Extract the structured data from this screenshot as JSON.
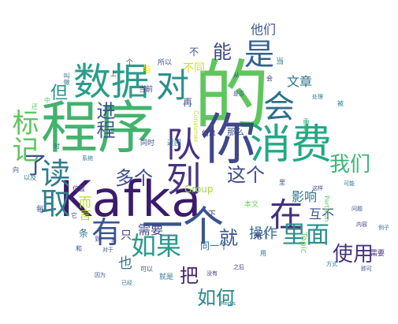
{
  "words": [
    {
      "text": "的",
      "color": "#5fc65e"
    },
    {
      "text": "Kafka",
      "color": "#3b1b6b"
    },
    {
      "text": "程序",
      "color": "#41b36c"
    },
    {
      "text": "你",
      "color": "#3f4889"
    },
    {
      "text": "消费",
      "color": "#22a784"
    },
    {
      "text": "数据",
      "color": "#2a9d8a"
    },
    {
      "text": "队列",
      "color": "#46327f"
    },
    {
      "text": "读取",
      "color": "#2f7d8e"
    },
    {
      "text": "一个",
      "color": "#3a5490"
    },
    {
      "text": "对",
      "color": "#2a8f8b"
    },
    {
      "text": "标记",
      "color": "#5fc65e"
    },
    {
      "text": "在",
      "color": "#43307d"
    },
    {
      "text": "是",
      "color": "#32628c"
    },
    {
      "text": "会",
      "color": "#2e6f8e"
    },
    {
      "text": "有",
      "color": "#3a548f"
    },
    {
      "text": "如果",
      "color": "#27998b"
    },
    {
      "text": "里面",
      "color": "#2c8e8b"
    },
    {
      "text": "我们",
      "color": "#3cb675"
    },
    {
      "text": "使用",
      "color": "#46337e"
    },
    {
      "text": "了",
      "color": "#3b4f8b"
    },
    {
      "text": "进程",
      "color": "#3b528b"
    },
    {
      "text": "这个",
      "color": "#3d4c89"
    },
    {
      "text": "多个",
      "color": "#3e4c8a"
    },
    {
      "text": "如何",
      "color": "#27888e"
    },
    {
      "text": "就",
      "color": "#3a558c"
    },
    {
      "text": "能",
      "color": "#3e4989"
    },
    {
      "text": "把",
      "color": "#45246e"
    },
    {
      "text": "但",
      "color": "#1f948c"
    },
    {
      "text": "而言",
      "color": "#b8de29"
    },
    {
      "text": "需要",
      "color": "#3f4788"
    },
    {
      "text": "操作",
      "color": "#31688e"
    },
    {
      "text": "也",
      "color": "#2a788e"
    },
    {
      "text": "只",
      "color": "#443a83"
    },
    {
      "text": "影响",
      "color": "#2b758e"
    },
    {
      "text": "互不",
      "color": "#3b528b"
    },
    {
      "text": "他们",
      "color": "#3a548c"
    },
    {
      "text": "文章",
      "color": "#2c728e"
    },
    {
      "text": "不同",
      "color": "#d0e11c"
    },
    {
      "text": "Group",
      "color": "#a3d93a"
    },
    {
      "text": "Topic",
      "color": "#7ad151"
    },
    {
      "text": "同一个",
      "color": "#2d708e"
    },
    {
      "text": "两个",
      "color": "#3f4788"
    },
    {
      "text": "那么",
      "color": "#3b528b"
    },
    {
      "text": "本文",
      "color": "#6ece58"
    },
    {
      "text": "条",
      "color": "#2a788e"
    },
    {
      "text": "再",
      "color": "#3b528b"
    },
    {
      "text": "信息",
      "color": "#443983"
    },
    {
      "text": "返回",
      "color": "#2a788e"
    },
    {
      "text": "同时",
      "color": "#3b528b"
    },
    {
      "text": "重复",
      "color": "#35b779"
    },
    {
      "text": "需要",
      "color": "#46337e"
    },
    {
      "text": "所以",
      "color": "#3b528b"
    },
    {
      "text": "与",
      "color": "#f3e600"
    },
    {
      "text": "当前",
      "color": "#443983"
    },
    {
      "text": "就是",
      "color": "#287d8e"
    },
    {
      "text": "Partition",
      "color": "#5ec962"
    },
    {
      "text": "Consumer",
      "color": "#c5e021"
    },
    {
      "text": "Redis",
      "color": "#2a788e"
    },
    {
      "text": "可以",
      "color": "#3b528b"
    },
    {
      "text": "位置",
      "color": "#443983"
    },
    {
      "text": "每",
      "color": "#3b528b"
    },
    {
      "text": "当",
      "color": "#2a788e"
    },
    {
      "text": "从",
      "color": "#3b528b"
    },
    {
      "text": "叫做",
      "color": "#2a788e"
    },
    {
      "text": "不",
      "color": "#3b528b"
    },
    {
      "text": "中",
      "color": "#5ec962"
    },
    {
      "text": "是否",
      "color": "#3b528b"
    },
    {
      "text": "到",
      "color": "#443983"
    },
    {
      "text": "可能",
      "color": "#2a788e"
    },
    {
      "text": "多",
      "color": "#3b528b"
    },
    {
      "text": "下",
      "color": "#443983"
    },
    {
      "text": "个",
      "color": "#3b528b"
    },
    {
      "text": "以及",
      "color": "#2a788e"
    },
    {
      "text": "向",
      "color": "#3b528b"
    },
    {
      "text": "时",
      "color": "#2a788e"
    },
    {
      "text": "上",
      "color": "#443983"
    },
    {
      "text": "和",
      "color": "#3b528b"
    },
    {
      "text": "系统",
      "color": "#2a788e"
    },
    {
      "text": "它",
      "color": "#3b528b"
    },
    {
      "text": "内容",
      "color": "#443983"
    },
    {
      "text": "处理",
      "color": "#2a788e"
    },
    {
      "text": "问题",
      "color": "#3b528b"
    },
    {
      "text": "方式",
      "color": "#2a788e"
    },
    {
      "text": "没有",
      "color": "#443983"
    },
    {
      "text": "因为",
      "color": "#3b528b"
    },
    {
      "text": "已经",
      "color": "#2a788e"
    },
    {
      "text": "还",
      "color": "#5ec962"
    },
    {
      "text": "这样",
      "color": "#3b528b"
    },
    {
      "text": "会",
      "color": "#443983"
    },
    {
      "text": "被",
      "color": "#2a788e"
    },
    {
      "text": "里",
      "color": "#3b528b"
    },
    {
      "text": "用",
      "color": "#2a788e"
    },
    {
      "text": "之后",
      "color": "#443983"
    },
    {
      "text": "对于",
      "color": "#3b528b"
    },
    {
      "text": "例子",
      "color": "#2a788e"
    },
    {
      "text": "即可",
      "color": "#3b528b"
    }
  ]
}
